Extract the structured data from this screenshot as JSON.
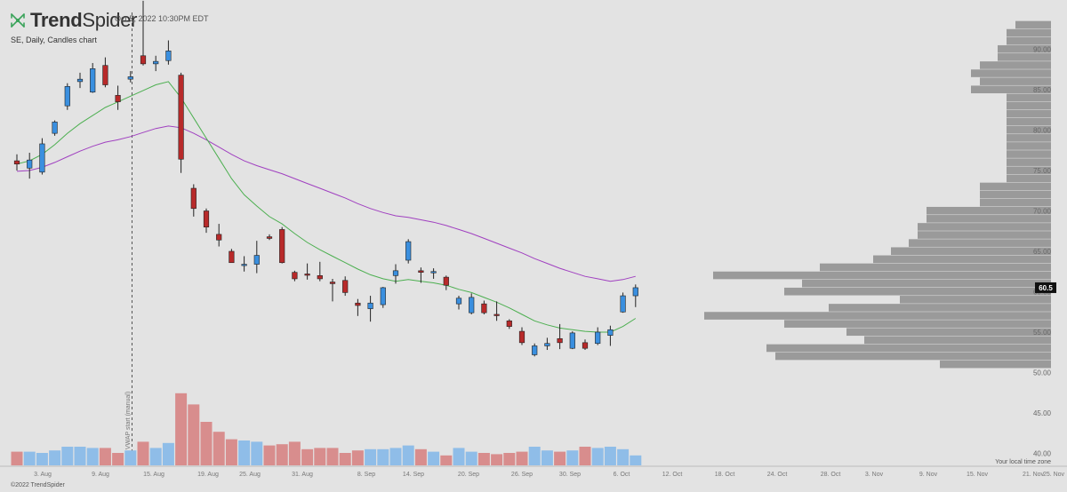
{
  "header": {
    "brand_prefix": "Trend",
    "brand_suffix": "Spider",
    "timestamp": "Oct 5, 2022 10:30PM EDT",
    "chart_description": "SE, Daily, Candles chart"
  },
  "footer": {
    "copyright": "©2022 TrendSpider",
    "timezone_note": "Your local time zone"
  },
  "vwap_label": "$ VWAP start (manual)",
  "colors": {
    "up": "#3a8fdf",
    "down": "#b82a2a",
    "vol_up": "#8fbde8",
    "vol_down": "#d88d8d",
    "ema_fast": "#4caf50",
    "ema_slow": "#a040c0",
    "profile": "#9a9a9a"
  },
  "chart_data": {
    "type": "candlestick",
    "ylim": [
      40,
      94
    ],
    "y_ticks": [
      40,
      45,
      50,
      55,
      60,
      65,
      70,
      75,
      80,
      85,
      90
    ],
    "current_price_label": "60.5",
    "current_price": 60.5,
    "x_ticks": [
      "3. Aug",
      "9. Aug",
      "15. Aug",
      "19. Aug",
      "25. Aug",
      "31. Aug",
      "8. Sep",
      "14. Sep",
      "20. Sep",
      "26. Sep",
      "30. Sep",
      "6. Oct",
      "12. Oct",
      "18. Oct",
      "24. Oct",
      "28. Oct",
      "3. Nov",
      "9. Nov",
      "15. Nov",
      "21. Nov",
      "25. Nov"
    ],
    "candles": [
      {
        "o": 76.2,
        "h": 77.0,
        "l": 75.0,
        "c": 75.8,
        "v": 1.1
      },
      {
        "o": 75.3,
        "h": 77.2,
        "l": 74.0,
        "c": 76.3,
        "v": 1.1
      },
      {
        "o": 74.8,
        "h": 79.0,
        "l": 74.5,
        "c": 78.3,
        "v": 1.0
      },
      {
        "o": 79.6,
        "h": 81.2,
        "l": 79.3,
        "c": 81.0,
        "v": 1.2
      },
      {
        "o": 83.0,
        "h": 85.8,
        "l": 82.5,
        "c": 85.4,
        "v": 1.5
      },
      {
        "o": 86.0,
        "h": 87.1,
        "l": 85.2,
        "c": 86.3,
        "v": 1.5
      },
      {
        "o": 84.7,
        "h": 88.3,
        "l": 84.6,
        "c": 87.6,
        "v": 1.4
      },
      {
        "o": 88.0,
        "h": 89.0,
        "l": 85.3,
        "c": 85.6,
        "v": 1.4
      },
      {
        "o": 84.3,
        "h": 85.5,
        "l": 82.5,
        "c": 83.5,
        "v": 1.0
      },
      {
        "o": 86.3,
        "h": 87.3,
        "l": 85.9,
        "c": 86.6,
        "v": 1.2
      },
      {
        "o": 89.2,
        "h": 96.0,
        "l": 88.0,
        "c": 88.2,
        "v": 1.9
      },
      {
        "o": 88.2,
        "h": 89.2,
        "l": 87.3,
        "c": 88.5,
        "v": 1.4
      },
      {
        "o": 88.6,
        "h": 91.1,
        "l": 88.1,
        "c": 89.8,
        "v": 1.8
      },
      {
        "o": 86.8,
        "h": 87.1,
        "l": 74.7,
        "c": 76.4,
        "v": 5.8
      },
      {
        "o": 72.8,
        "h": 73.3,
        "l": 69.3,
        "c": 70.3,
        "v": 4.9
      },
      {
        "o": 70.0,
        "h": 70.3,
        "l": 67.3,
        "c": 68.0,
        "v": 3.5
      },
      {
        "o": 67.1,
        "h": 68.4,
        "l": 65.6,
        "c": 66.4,
        "v": 2.7
      },
      {
        "o": 65.0,
        "h": 65.3,
        "l": 63.6,
        "c": 63.6,
        "v": 2.1
      },
      {
        "o": 63.3,
        "h": 64.4,
        "l": 62.5,
        "c": 63.4,
        "v": 2.0
      },
      {
        "o": 63.4,
        "h": 66.3,
        "l": 62.3,
        "c": 64.5,
        "v": 1.9
      },
      {
        "o": 66.8,
        "h": 67.1,
        "l": 66.4,
        "c": 66.6,
        "v": 1.6
      },
      {
        "o": 67.7,
        "h": 68.0,
        "l": 63.5,
        "c": 63.6,
        "v": 1.7
      },
      {
        "o": 62.4,
        "h": 62.6,
        "l": 61.3,
        "c": 61.6,
        "v": 1.9
      },
      {
        "o": 62.2,
        "h": 63.5,
        "l": 61.5,
        "c": 62.1,
        "v": 1.3
      },
      {
        "o": 62.0,
        "h": 63.7,
        "l": 61.3,
        "c": 61.6,
        "v": 1.4
      },
      {
        "o": 61.2,
        "h": 61.6,
        "l": 58.8,
        "c": 61.0,
        "v": 1.4
      },
      {
        "o": 61.4,
        "h": 61.9,
        "l": 59.5,
        "c": 59.9,
        "v": 1.0
      },
      {
        "o": 58.6,
        "h": 59.1,
        "l": 57.0,
        "c": 58.3,
        "v": 1.2
      },
      {
        "o": 57.9,
        "h": 59.5,
        "l": 56.3,
        "c": 58.6,
        "v": 1.3
      },
      {
        "o": 58.4,
        "h": 60.6,
        "l": 58.0,
        "c": 60.5,
        "v": 1.3
      },
      {
        "o": 62.0,
        "h": 63.4,
        "l": 61.0,
        "c": 62.6,
        "v": 1.4
      },
      {
        "o": 63.9,
        "h": 66.5,
        "l": 63.5,
        "c": 66.2,
        "v": 1.6
      },
      {
        "o": 62.6,
        "h": 63.0,
        "l": 61.1,
        "c": 62.4,
        "v": 1.3
      },
      {
        "o": 62.4,
        "h": 62.9,
        "l": 61.6,
        "c": 62.5,
        "v": 1.1
      },
      {
        "o": 61.8,
        "h": 62.0,
        "l": 60.2,
        "c": 60.8,
        "v": 0.8
      },
      {
        "o": 58.5,
        "h": 59.5,
        "l": 57.8,
        "c": 59.2,
        "v": 1.4
      },
      {
        "o": 57.4,
        "h": 59.8,
        "l": 57.2,
        "c": 59.3,
        "v": 1.1
      },
      {
        "o": 58.5,
        "h": 58.9,
        "l": 57.2,
        "c": 57.4,
        "v": 1.0
      },
      {
        "o": 57.2,
        "h": 58.8,
        "l": 56.4,
        "c": 57.1,
        "v": 0.9
      },
      {
        "o": 56.4,
        "h": 56.6,
        "l": 55.4,
        "c": 55.7,
        "v": 1.0
      },
      {
        "o": 55.1,
        "h": 55.6,
        "l": 53.4,
        "c": 53.7,
        "v": 1.1
      },
      {
        "o": 52.2,
        "h": 53.6,
        "l": 52.0,
        "c": 53.3,
        "v": 1.5
      },
      {
        "o": 53.3,
        "h": 54.3,
        "l": 52.8,
        "c": 53.6,
        "v": 1.2
      },
      {
        "o": 54.2,
        "h": 56.0,
        "l": 52.9,
        "c": 53.7,
        "v": 1.1
      },
      {
        "o": 53.0,
        "h": 55.1,
        "l": 52.9,
        "c": 54.9,
        "v": 1.2
      },
      {
        "o": 53.7,
        "h": 54.1,
        "l": 52.8,
        "c": 53.0,
        "v": 1.5
      },
      {
        "o": 53.6,
        "h": 55.6,
        "l": 53.4,
        "c": 55.0,
        "v": 1.4
      },
      {
        "o": 54.6,
        "h": 55.8,
        "l": 53.3,
        "c": 55.3,
        "v": 1.5
      },
      {
        "o": 57.5,
        "h": 59.9,
        "l": 57.4,
        "c": 59.5,
        "v": 1.3
      },
      {
        "o": 59.5,
        "h": 60.9,
        "l": 58.1,
        "c": 60.5,
        "v": 0.8
      }
    ],
    "ema_fast": [
      75.8,
      76.2,
      77.0,
      78.2,
      79.6,
      80.8,
      81.8,
      82.8,
      83.5,
      84.2,
      84.9,
      85.6,
      86.0,
      84.0,
      81.5,
      79.0,
      76.5,
      74.0,
      72.0,
      70.6,
      69.3,
      68.4,
      67.2,
      66.1,
      65.2,
      64.4,
      63.6,
      62.8,
      62.1,
      61.6,
      61.3,
      61.5,
      61.3,
      61.1,
      60.8,
      60.3,
      59.9,
      59.3,
      58.7,
      58.0,
      57.2,
      56.4,
      55.9,
      55.5,
      55.3,
      55.1,
      55.0,
      55.0,
      55.7,
      56.7
    ],
    "ema_slow": [
      74.9,
      75.0,
      75.4,
      76.0,
      76.7,
      77.4,
      78.0,
      78.5,
      78.8,
      79.2,
      79.7,
      80.2,
      80.5,
      80.3,
      79.6,
      78.8,
      77.9,
      77.0,
      76.2,
      75.6,
      75.1,
      74.6,
      74.0,
      73.4,
      72.8,
      72.2,
      71.6,
      70.9,
      70.3,
      69.8,
      69.4,
      69.2,
      68.9,
      68.6,
      68.2,
      67.7,
      67.2,
      66.6,
      66.0,
      65.4,
      64.8,
      64.1,
      63.5,
      62.9,
      62.4,
      61.9,
      61.6,
      61.3,
      61.5,
      61.9
    ],
    "volume_profile": [
      {
        "p": 93.0,
        "w": 40
      },
      {
        "p": 92.0,
        "w": 50
      },
      {
        "p": 91.0,
        "w": 50
      },
      {
        "p": 90.0,
        "w": 60
      },
      {
        "p": 89.0,
        "w": 60
      },
      {
        "p": 88.0,
        "w": 80
      },
      {
        "p": 87.0,
        "w": 90
      },
      {
        "p": 86.0,
        "w": 80
      },
      {
        "p": 85.0,
        "w": 90
      },
      {
        "p": 84.0,
        "w": 50
      },
      {
        "p": 83.0,
        "w": 50
      },
      {
        "p": 82.0,
        "w": 50
      },
      {
        "p": 81.0,
        "w": 50
      },
      {
        "p": 80.0,
        "w": 50
      },
      {
        "p": 79.0,
        "w": 50
      },
      {
        "p": 78.0,
        "w": 50
      },
      {
        "p": 77.0,
        "w": 50
      },
      {
        "p": 76.0,
        "w": 50
      },
      {
        "p": 75.0,
        "w": 50
      },
      {
        "p": 74.0,
        "w": 50
      },
      {
        "p": 73.0,
        "w": 80
      },
      {
        "p": 72.0,
        "w": 80
      },
      {
        "p": 71.0,
        "w": 80
      },
      {
        "p": 70.0,
        "w": 140
      },
      {
        "p": 69.0,
        "w": 140
      },
      {
        "p": 68.0,
        "w": 150
      },
      {
        "p": 67.0,
        "w": 150
      },
      {
        "p": 66.0,
        "w": 160
      },
      {
        "p": 65.0,
        "w": 180
      },
      {
        "p": 64.0,
        "w": 200
      },
      {
        "p": 63.0,
        "w": 260
      },
      {
        "p": 62.0,
        "w": 380
      },
      {
        "p": 61.0,
        "w": 280
      },
      {
        "p": 60.0,
        "w": 300
      },
      {
        "p": 59.0,
        "w": 170
      },
      {
        "p": 58.0,
        "w": 250
      },
      {
        "p": 57.0,
        "w": 390
      },
      {
        "p": 56.0,
        "w": 300
      },
      {
        "p": 55.0,
        "w": 230
      },
      {
        "p": 54.0,
        "w": 210
      },
      {
        "p": 53.0,
        "w": 320
      },
      {
        "p": 52.0,
        "w": 310
      },
      {
        "p": 51.0,
        "w": 125
      }
    ]
  }
}
